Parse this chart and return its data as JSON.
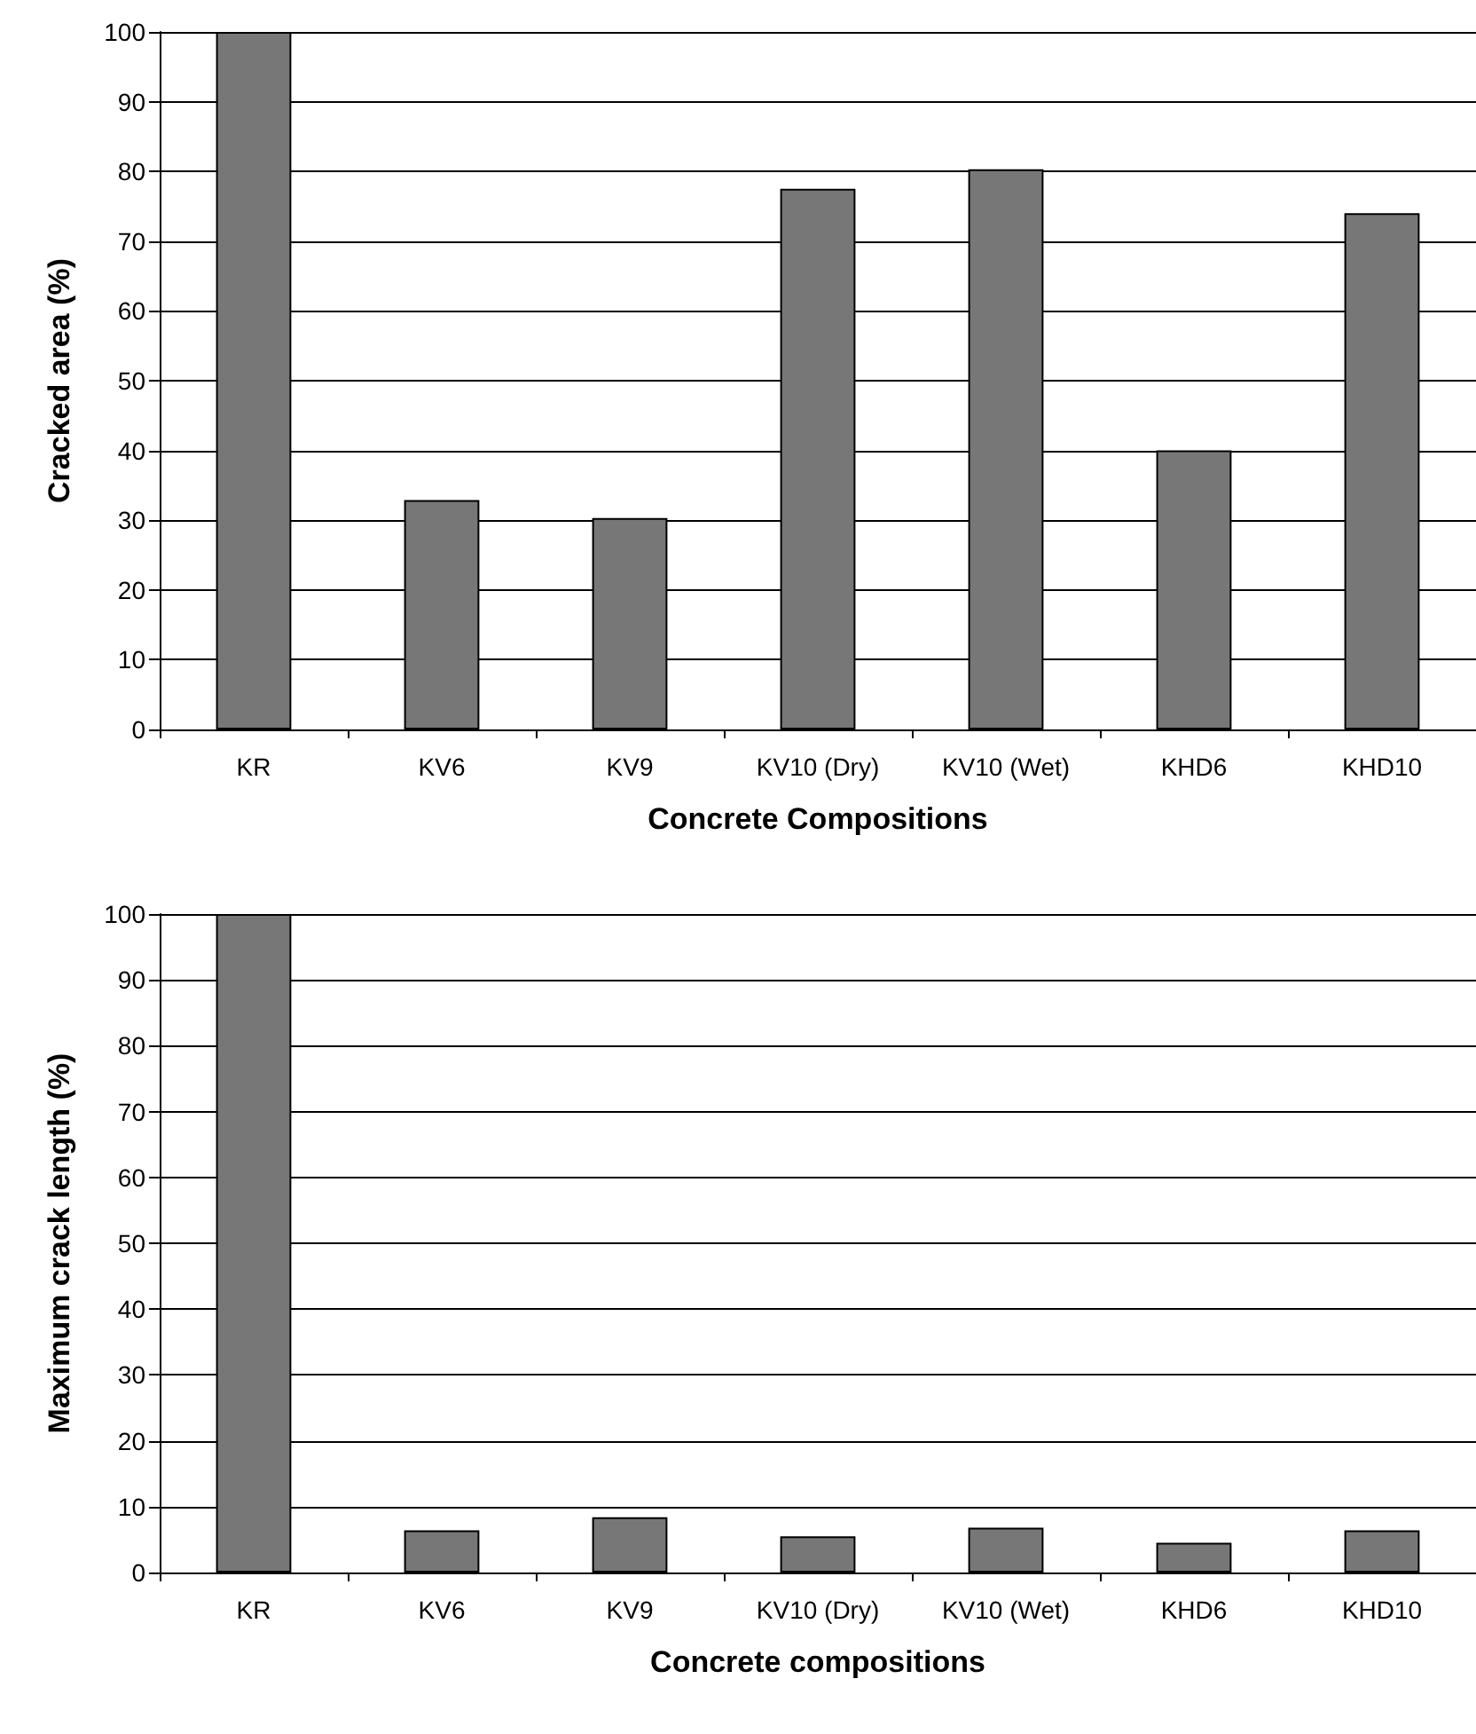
{
  "chart_data": [
    {
      "type": "bar",
      "xlabel": "Concrete Compositions",
      "ylabel": "Cracked area (%)",
      "categories": [
        "KR",
        "KV6",
        "KV9",
        "KV10 (Dry)",
        "KV10 (Wet)",
        "KHD6",
        "KHD10"
      ],
      "values": [
        100,
        32.9,
        30.3,
        77.5,
        80.3,
        40,
        74
      ],
      "color": "#777777",
      "ylim": [
        0,
        100
      ],
      "yticks": [
        0,
        10,
        20,
        30,
        40,
        50,
        60,
        70,
        80,
        90,
        100
      ],
      "grid": "y"
    },
    {
      "type": "bar",
      "xlabel": "Concrete compositions",
      "ylabel": "Maximum crack length (%)",
      "categories": [
        "KR",
        "KV6",
        "KV9",
        "KV10 (Dry)",
        "KV10 (Wet)",
        "KHD6",
        "KHD10"
      ],
      "values": [
        100,
        6.4,
        8.4,
        5.5,
        6.8,
        4.5,
        6.4
      ],
      "color": "#777777",
      "ylim": [
        0,
        100
      ],
      "yticks": [
        0,
        10,
        20,
        30,
        40,
        50,
        60,
        70,
        80,
        90,
        100
      ],
      "grid": "y"
    }
  ]
}
